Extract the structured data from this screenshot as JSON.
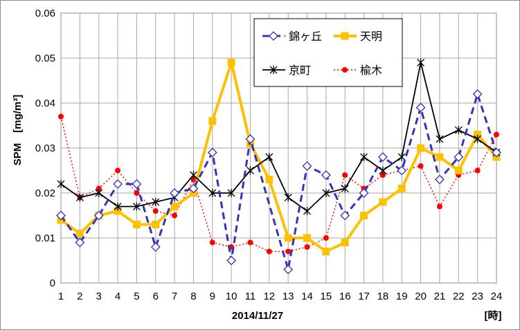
{
  "chart_data": {
    "type": "line",
    "xlabel": "2014/11/27",
    "x_unit_label": "[時]",
    "ylabel": "SPM　[mg/m³]",
    "ylim": [
      0,
      0.06
    ],
    "y_ticks": [
      "0",
      "0.01",
      "0.02",
      "0.03",
      "0.04",
      "0.05",
      "0.06"
    ],
    "categories": [
      "1",
      "2",
      "3",
      "4",
      "5",
      "6",
      "7",
      "8",
      "9",
      "10",
      "11",
      "12",
      "13",
      "14",
      "15",
      "16",
      "17",
      "18",
      "19",
      "20",
      "21",
      "22",
      "23",
      "24"
    ],
    "grid": true,
    "legend_position": "top-right",
    "series": [
      {
        "name": "錦ヶ丘",
        "color": "#3333bb",
        "style": "dashed",
        "marker": "diamond",
        "values": [
          0.015,
          0.009,
          0.015,
          0.022,
          0.022,
          0.008,
          0.02,
          0.021,
          0.029,
          0.005,
          0.032,
          null,
          0.003,
          0.026,
          0.024,
          0.015,
          0.02,
          0.028,
          0.025,
          0.039,
          0.023,
          0.028,
          0.042,
          0.029
        ]
      },
      {
        "name": "天明",
        "color": "#ffc000",
        "style": "solid-thick",
        "marker": "square",
        "values": [
          0.014,
          0.011,
          0.015,
          0.016,
          0.013,
          0.013,
          0.017,
          0.02,
          0.036,
          0.049,
          0.031,
          0.023,
          0.01,
          0.01,
          0.007,
          0.009,
          0.015,
          0.018,
          0.021,
          0.03,
          0.028,
          0.025,
          0.033,
          0.028
        ]
      },
      {
        "name": "京町",
        "color": "#000000",
        "style": "solid",
        "marker": "star",
        "values": [
          0.022,
          0.019,
          0.02,
          0.017,
          0.017,
          0.018,
          0.019,
          0.024,
          0.02,
          0.02,
          0.025,
          0.028,
          0.019,
          0.016,
          0.02,
          0.021,
          0.028,
          0.025,
          0.028,
          0.049,
          0.032,
          0.034,
          0.032,
          0.029
        ]
      },
      {
        "name": "楡木",
        "color": "#ff0000",
        "style": "dotted",
        "marker": "circle",
        "values": [
          0.037,
          0.019,
          0.021,
          0.025,
          0.02,
          0.016,
          0.015,
          0.023,
          0.009,
          0.008,
          0.009,
          0.007,
          0.007,
          0.008,
          0.01,
          0.024,
          0.021,
          0.024,
          0.025,
          0.026,
          0.017,
          0.024,
          0.025,
          0.033
        ]
      }
    ]
  }
}
